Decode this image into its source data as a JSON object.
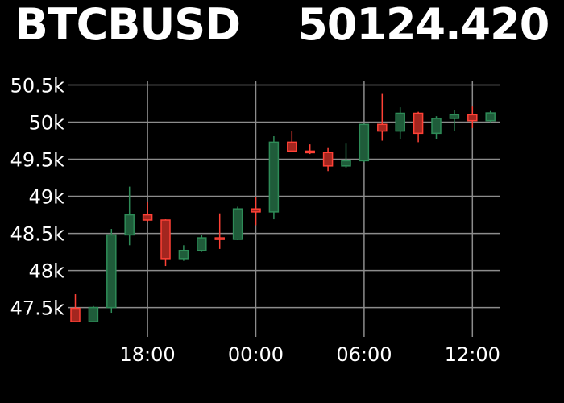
{
  "chart_data": {
    "type": "candlestick",
    "title": "BTCBUSD    50124.420",
    "symbol": "BTCBUSD",
    "last_price": "50124.420",
    "x_tick_labels": [
      "18:00",
      "00:00",
      "06:00",
      "12:00"
    ],
    "y_tick_labels": [
      "47.5k",
      "48k",
      "48.5k",
      "49k",
      "49.5k",
      "50k",
      "50.5k"
    ],
    "y_ticks": [
      47500,
      48000,
      48500,
      49000,
      49500,
      50000,
      50500
    ],
    "ylim": [
      47300,
      50560
    ],
    "grid": true,
    "up_color": "#2e8b57",
    "down_color": "#ff4136",
    "candles": [
      {
        "time": "14:00",
        "open": 47490,
        "high": 47680,
        "low": 47300,
        "close": 47310
      },
      {
        "time": "15:00",
        "open": 47310,
        "high": 47520,
        "low": 47300,
        "close": 47500
      },
      {
        "time": "16:00",
        "open": 47500,
        "high": 48560,
        "low": 47430,
        "close": 48480
      },
      {
        "time": "17:00",
        "open": 48480,
        "high": 49130,
        "low": 48340,
        "close": 48750
      },
      {
        "time": "18:00",
        "open": 48750,
        "high": 48920,
        "low": 48660,
        "close": 48680
      },
      {
        "time": "19:00",
        "open": 48680,
        "high": 48690,
        "low": 48060,
        "close": 48160
      },
      {
        "time": "20:00",
        "open": 48160,
        "high": 48340,
        "low": 48130,
        "close": 48270
      },
      {
        "time": "21:00",
        "open": 48270,
        "high": 48480,
        "low": 48250,
        "close": 48440
      },
      {
        "time": "22:00",
        "open": 48440,
        "high": 48770,
        "low": 48290,
        "close": 48420
      },
      {
        "time": "23:00",
        "open": 48420,
        "high": 48860,
        "low": 48410,
        "close": 48830
      },
      {
        "time": "00:00",
        "open": 48830,
        "high": 48990,
        "low": 48610,
        "close": 48790
      },
      {
        "time": "01:00",
        "open": 48790,
        "high": 49810,
        "low": 48690,
        "close": 49730
      },
      {
        "time": "02:00",
        "open": 49730,
        "high": 49880,
        "low": 49600,
        "close": 49610
      },
      {
        "time": "03:00",
        "open": 49610,
        "high": 49700,
        "low": 49570,
        "close": 49590
      },
      {
        "time": "04:00",
        "open": 49590,
        "high": 49650,
        "low": 49340,
        "close": 49410
      },
      {
        "time": "05:00",
        "open": 49410,
        "high": 49710,
        "low": 49380,
        "close": 49480
      },
      {
        "time": "06:00",
        "open": 49480,
        "high": 49980,
        "low": 49460,
        "close": 49970
      },
      {
        "time": "07:00",
        "open": 49970,
        "high": 50380,
        "low": 49750,
        "close": 49880
      },
      {
        "time": "08:00",
        "open": 49880,
        "high": 50200,
        "low": 49770,
        "close": 50120
      },
      {
        "time": "09:00",
        "open": 50120,
        "high": 50140,
        "low": 49730,
        "close": 49850
      },
      {
        "time": "10:00",
        "open": 49850,
        "high": 50080,
        "low": 49770,
        "close": 50050
      },
      {
        "time": "11:00",
        "open": 50050,
        "high": 50160,
        "low": 49880,
        "close": 50100
      },
      {
        "time": "12:00",
        "open": 50100,
        "high": 50210,
        "low": 49920,
        "close": 50020
      },
      {
        "time": "13:00",
        "open": 50020,
        "high": 50150,
        "low": 50000,
        "close": 50124.42
      }
    ]
  }
}
